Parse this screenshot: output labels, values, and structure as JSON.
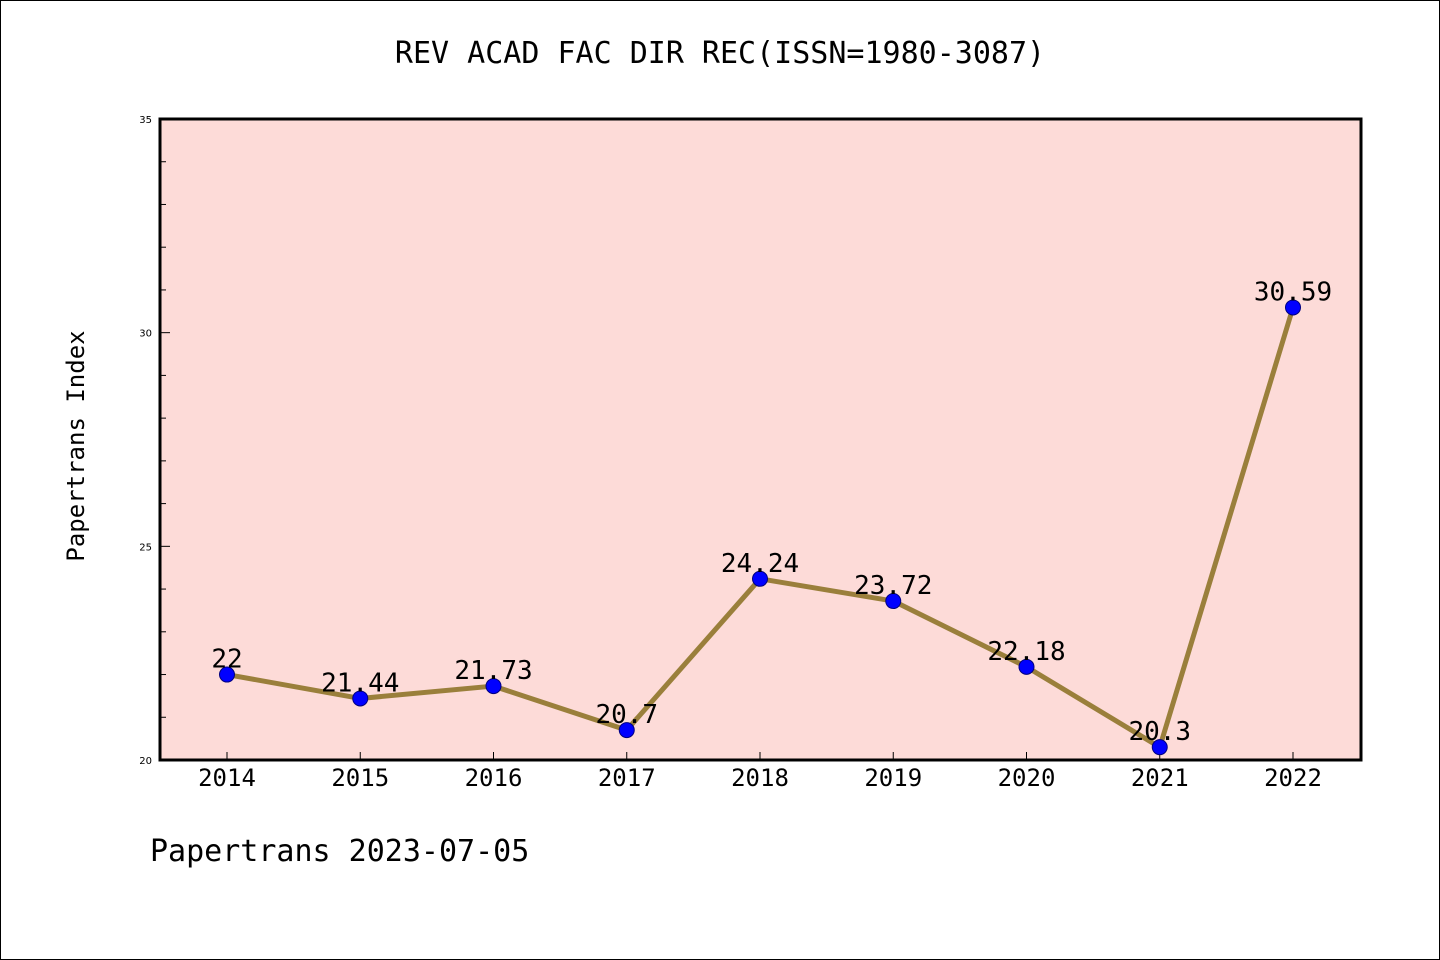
{
  "title": "REV ACAD FAC DIR REC(ISSN=1980-3087)",
  "footer": "Papertrans 2023-07-05",
  "colors": {
    "plot_background": "#fddbd8",
    "line": "#9a7f3b",
    "marker": "#0000ff",
    "axis": "#000000"
  },
  "chart_data": {
    "type": "line",
    "title": "REV ACAD FAC DIR REC(ISSN=1980-3087)",
    "xlabel": "",
    "ylabel": "Papertrans Index",
    "ylim": [
      20,
      35
    ],
    "yticks": [
      20,
      25,
      30,
      35
    ],
    "y_minor_step": 1,
    "grid": false,
    "x": [
      "2014",
      "2015",
      "2016",
      "2017",
      "2018",
      "2019",
      "2020",
      "2021",
      "2022"
    ],
    "series": [
      {
        "values": [
          22,
          21.44,
          21.73,
          20.7,
          24.24,
          23.72,
          22.18,
          20.3,
          30.59
        ],
        "labels": [
          "22",
          "21.44",
          "21.73",
          "20.7",
          "24.24",
          "23.72",
          "22.18",
          "20.3",
          "30.59"
        ]
      }
    ]
  }
}
